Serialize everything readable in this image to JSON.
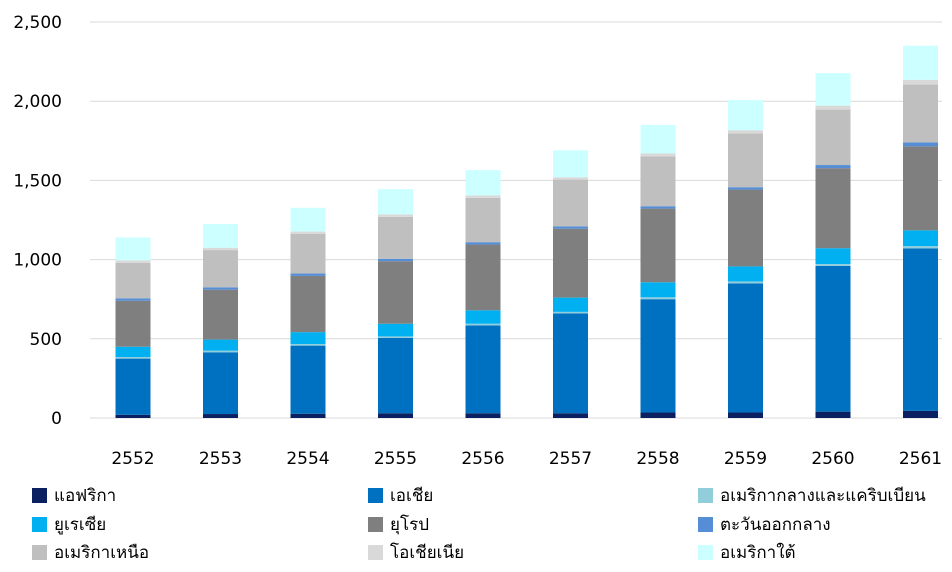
{
  "chart_data": {
    "type": "bar",
    "stacked": true,
    "categories": [
      "2552",
      "2553",
      "2554",
      "2555",
      "2556",
      "2557",
      "2558",
      "2559",
      "2560",
      "2561"
    ],
    "ylim": [
      0,
      2500
    ],
    "yticks": [
      0,
      500,
      1000,
      1500,
      2000,
      2500
    ],
    "ytick_labels": [
      "0",
      "500",
      "1,000",
      "1,500",
      "2,000",
      "2,500"
    ],
    "grid": true,
    "legend_position": "bottom",
    "series": [
      {
        "name": "แอฟริกา",
        "color": "#0a2060",
        "values": [
          20,
          25,
          27,
          30,
          30,
          30,
          35,
          35,
          40,
          45
        ]
      },
      {
        "name": "เอเชีย",
        "color": "#0070c0",
        "values": [
          355,
          390,
          430,
          475,
          555,
          630,
          715,
          815,
          920,
          1025
        ]
      },
      {
        "name": "อเมริกากลางและแคริบเบียน",
        "color": "#92cddc",
        "values": [
          10,
          10,
          10,
          10,
          10,
          10,
          12,
          12,
          12,
          15
        ]
      },
      {
        "name": "ยูเรเซีย",
        "color": "#00b0f0",
        "values": [
          65,
          70,
          75,
          80,
          85,
          90,
          95,
          95,
          100,
          100
        ]
      },
      {
        "name": "ยุโรป",
        "color": "#7f7f7f",
        "values": [
          290,
          315,
          355,
          395,
          415,
          435,
          465,
          485,
          505,
          530
        ]
      },
      {
        "name": "ตะวันออกกลาง",
        "color": "#558ed5",
        "values": [
          15,
          15,
          15,
          15,
          15,
          15,
          15,
          15,
          20,
          25
        ]
      },
      {
        "name": "อเมริกาเหนือ",
        "color": "#bfbfbf",
        "values": [
          225,
          235,
          250,
          265,
          280,
          295,
          315,
          340,
          350,
          365
        ]
      },
      {
        "name": "โอเชียเนีย",
        "color": "#d9d9d9",
        "values": [
          15,
          15,
          15,
          15,
          15,
          15,
          18,
          20,
          25,
          30
        ]
      },
      {
        "name": "อเมริกาใต้",
        "color": "#ccffff",
        "values": [
          145,
          150,
          150,
          160,
          160,
          170,
          180,
          190,
          205,
          215
        ]
      }
    ]
  }
}
